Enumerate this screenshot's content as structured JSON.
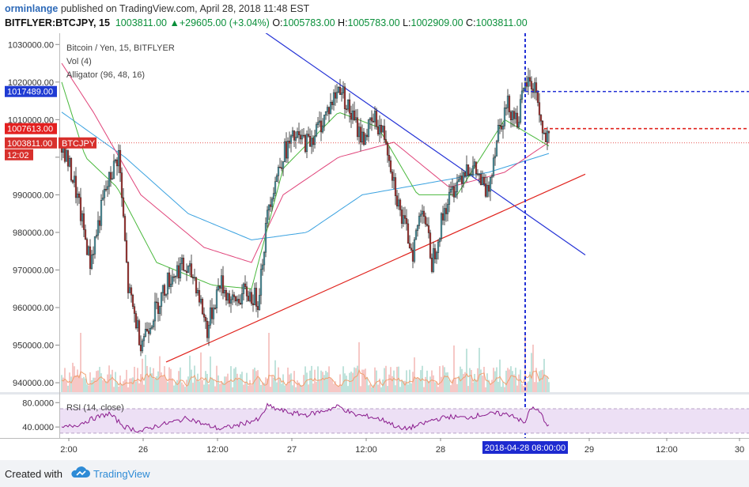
{
  "header": {
    "user": "orminlange",
    "published": "published on TradingView.com, April 28, 2018 11:48 EST",
    "symbol": "BITFLYER:BTCJPY, 15",
    "last": "1003811.00",
    "change": "+29605.00 (+3.04%)",
    "o_label": "O:",
    "o": "1005783.00",
    "h_label": "H:",
    "h": "1005783.00",
    "l_label": "L:",
    "l": "1002909.00",
    "c_label": "C:",
    "c": "1003811.00"
  },
  "legend": {
    "title": "Bitcoin / Yen, 15, BITFLYER",
    "vol": "Vol (4)",
    "alligator": "Alligator (96, 48, 16)"
  },
  "rsi": {
    "label": "RSI (14, close)",
    "ticks": [
      "80.0000",
      "40.0000"
    ]
  },
  "price_badges": {
    "blue": "1017489.00",
    "red": "1007613.00",
    "last": "1003811.00",
    "symbol": "BTCJPY",
    "countdown": "12:02"
  },
  "time_badge": "2018-04-28 08:00:00",
  "footer": {
    "created_with": "Created with",
    "brand": "TradingView"
  },
  "colors": {
    "up": "#4fa3b3",
    "down": "#b5312d",
    "jaw": "#3aa2e0",
    "teeth": "#e0447a",
    "lips": "#49b83c",
    "trend_blue": "#2432d6",
    "trend_red": "#e0231d",
    "rsi": "#8a1b8d"
  },
  "chart_data": {
    "type": "candlestick",
    "title": "Bitcoin / Yen, 15, BITFLYER",
    "y_ticks": [
      1030000,
      1020000,
      1010000,
      1000000,
      990000,
      980000,
      970000,
      960000,
      950000,
      940000
    ],
    "y_tick_labels": [
      "1030000.00",
      "1020000.00",
      "1010000.00",
      "",
      "990000.00",
      "980000.00",
      "970000.00",
      "960000.00",
      "950000.00",
      "940000.00"
    ],
    "ylim": [
      937500,
      1033000
    ],
    "x_ticks": [
      "2:00",
      "26",
      "12:00",
      "27",
      "12:00",
      "28",
      "29",
      "12:00",
      "30"
    ],
    "price_waypoints": [
      [
        0,
        1004000
      ],
      [
        8,
        993000
      ],
      [
        18,
        972000
      ],
      [
        27,
        990000
      ],
      [
        36,
        1001000
      ],
      [
        42,
        965000
      ],
      [
        50,
        951000
      ],
      [
        60,
        960000
      ],
      [
        67,
        967000
      ],
      [
        75,
        971000
      ],
      [
        84,
        968000
      ],
      [
        92,
        954000
      ],
      [
        100,
        967000
      ],
      [
        108,
        961000
      ],
      [
        116,
        964000
      ],
      [
        124,
        962000
      ],
      [
        131,
        988000
      ],
      [
        140,
        1001000
      ],
      [
        147,
        1005000
      ],
      [
        156,
        1004000
      ],
      [
        164,
        1009000
      ],
      [
        170,
        1014000
      ],
      [
        176,
        1019000
      ],
      [
        182,
        1012000
      ],
      [
        190,
        1005000
      ],
      [
        198,
        1010000
      ],
      [
        205,
        1005000
      ],
      [
        214,
        985000
      ],
      [
        222,
        975000
      ],
      [
        228,
        988000
      ],
      [
        234,
        972000
      ],
      [
        242,
        986000
      ],
      [
        248,
        992000
      ],
      [
        256,
        998000
      ],
      [
        262,
        996000
      ],
      [
        269,
        990000
      ],
      [
        276,
        1008000
      ],
      [
        282,
        1014000
      ],
      [
        288,
        1010000
      ],
      [
        294,
        1020000
      ],
      [
        300,
        1018000
      ],
      [
        304,
        1006000
      ],
      [
        308,
        1003811
      ]
    ],
    "candle_count": 309,
    "alligator": {
      "jaw": [
        [
          0,
          1012000
        ],
        [
          40,
          1000000
        ],
        [
          80,
          985000
        ],
        [
          120,
          978000
        ],
        [
          155,
          980000
        ],
        [
          190,
          990000
        ],
        [
          230,
          993000
        ],
        [
          270,
          996000
        ],
        [
          308,
          1001000
        ]
      ],
      "teeth": [
        [
          0,
          1025000
        ],
        [
          20,
          1012000
        ],
        [
          50,
          990000
        ],
        [
          90,
          976000
        ],
        [
          120,
          972000
        ],
        [
          140,
          990000
        ],
        [
          175,
          1000000
        ],
        [
          210,
          1004000
        ],
        [
          245,
          992000
        ],
        [
          280,
          996000
        ],
        [
          308,
          1004000
        ]
      ],
      "lips": [
        [
          0,
          1020000
        ],
        [
          15,
          1000000
        ],
        [
          35,
          992000
        ],
        [
          60,
          972000
        ],
        [
          95,
          966000
        ],
        [
          120,
          965000
        ],
        [
          140,
          997000
        ],
        [
          175,
          1012000
        ],
        [
          200,
          1008000
        ],
        [
          225,
          990000
        ],
        [
          250,
          990000
        ],
        [
          280,
          1010000
        ],
        [
          308,
          1003000
        ]
      ]
    },
    "trendlines": [
      {
        "color": "blue",
        "from": [
          119,
          1036000
        ],
        "to": [
          331,
          974000
        ]
      },
      {
        "color": "red",
        "from": [
          66,
          945500
        ],
        "to": [
          331,
          995500
        ]
      }
    ],
    "horizontal_levels": [
      {
        "value": 1017489,
        "color": "blue",
        "start_index": 293
      },
      {
        "value": 1007613,
        "color": "red",
        "start_index": 305
      }
    ],
    "vertical_marker_index": 293,
    "rsi_ylim": [
      22,
      92
    ],
    "rsi_band": [
      70,
      30
    ],
    "rsi_waypoints": [
      [
        0,
        38
      ],
      [
        10,
        44
      ],
      [
        20,
        54
      ],
      [
        30,
        62
      ],
      [
        40,
        40
      ],
      [
        50,
        33
      ],
      [
        60,
        42
      ],
      [
        70,
        48
      ],
      [
        80,
        55
      ],
      [
        90,
        44
      ],
      [
        100,
        37
      ],
      [
        110,
        42
      ],
      [
        120,
        50
      ],
      [
        125,
        52
      ],
      [
        130,
        75
      ],
      [
        135,
        70
      ],
      [
        145,
        63
      ],
      [
        155,
        60
      ],
      [
        165,
        66
      ],
      [
        175,
        74
      ],
      [
        185,
        60
      ],
      [
        195,
        57
      ],
      [
        205,
        50
      ],
      [
        215,
        36
      ],
      [
        225,
        42
      ],
      [
        235,
        52
      ],
      [
        245,
        57
      ],
      [
        255,
        55
      ],
      [
        265,
        60
      ],
      [
        275,
        62
      ],
      [
        285,
        60
      ],
      [
        293,
        45
      ],
      [
        296,
        72
      ],
      [
        302,
        65
      ],
      [
        308,
        40
      ]
    ],
    "volume_note": "bars on lower pane with orange moving average"
  }
}
